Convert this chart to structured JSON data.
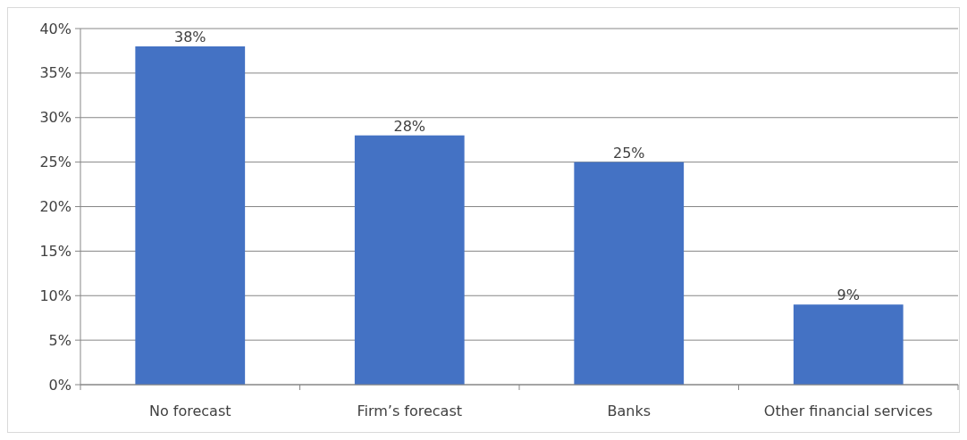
{
  "chart_data": {
    "type": "bar",
    "categories": [
      "No forecast",
      "Firm’s forecast",
      "Banks",
      "Other financial services"
    ],
    "values": [
      38,
      28,
      25,
      9
    ],
    "value_labels": [
      "38%",
      "28%",
      "25%",
      "9%"
    ],
    "color": "#4472c4",
    "ylim": [
      0,
      40
    ],
    "yticks": [
      {
        "value": 0,
        "label": "0%"
      },
      {
        "value": 5,
        "label": "5%"
      },
      {
        "value": 10,
        "label": "10%"
      },
      {
        "value": 15,
        "label": "15%"
      },
      {
        "value": 20,
        "label": "20%"
      },
      {
        "value": 25,
        "label": "25%"
      },
      {
        "value": 30,
        "label": "30%"
      },
      {
        "value": 35,
        "label": "35%"
      },
      {
        "value": 40,
        "label": "40%"
      }
    ],
    "grid": "y"
  }
}
